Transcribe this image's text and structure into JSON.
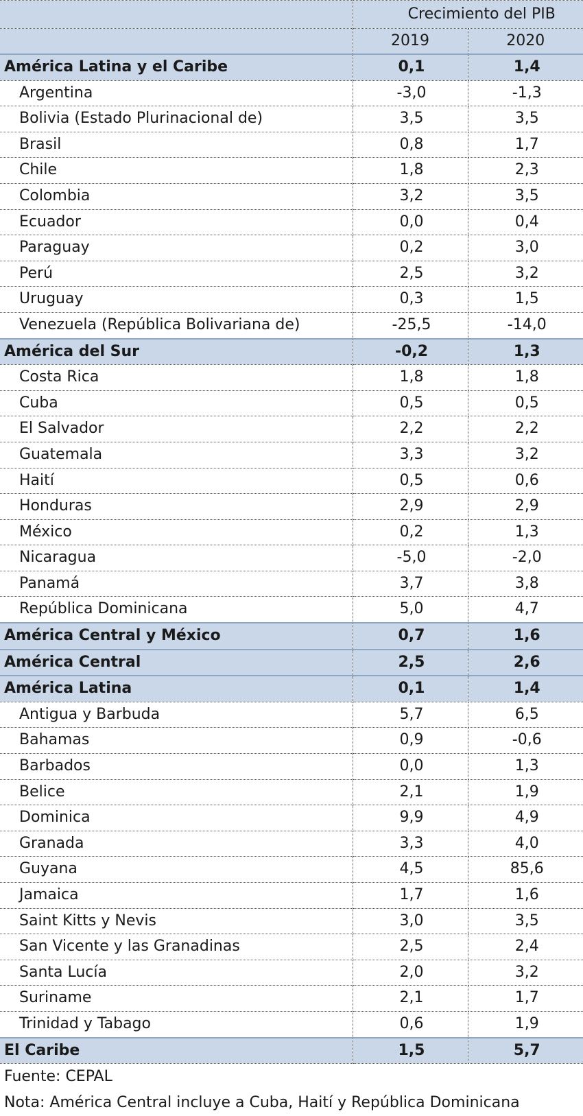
{
  "table": {
    "group_header": "Crecimiento del PIB",
    "years": [
      "2019",
      "2020"
    ],
    "rows": [
      {
        "name": "América Latina y el Caribe",
        "y2019": "0,1",
        "y2020": "1,4",
        "aggregate": true
      },
      {
        "name": "Argentina",
        "y2019": "-3,0",
        "y2020": "-1,3",
        "aggregate": false
      },
      {
        "name": "Bolivia (Estado Plurinacional de)",
        "y2019": "3,5",
        "y2020": "3,5",
        "aggregate": false
      },
      {
        "name": "Brasil",
        "y2019": "0,8",
        "y2020": "1,7",
        "aggregate": false
      },
      {
        "name": "Chile",
        "y2019": "1,8",
        "y2020": "2,3",
        "aggregate": false
      },
      {
        "name": "Colombia",
        "y2019": "3,2",
        "y2020": "3,5",
        "aggregate": false
      },
      {
        "name": "Ecuador",
        "y2019": "0,0",
        "y2020": "0,4",
        "aggregate": false
      },
      {
        "name": "Paraguay",
        "y2019": "0,2",
        "y2020": "3,0",
        "aggregate": false
      },
      {
        "name": "Perú",
        "y2019": "2,5",
        "y2020": "3,2",
        "aggregate": false
      },
      {
        "name": "Uruguay",
        "y2019": "0,3",
        "y2020": "1,5",
        "aggregate": false
      },
      {
        "name": "Venezuela (República Bolivariana de)",
        "y2019": "-25,5",
        "y2020": "-14,0",
        "aggregate": false
      },
      {
        "name": "América del Sur",
        "y2019": "-0,2",
        "y2020": "1,3",
        "aggregate": true
      },
      {
        "name": "Costa Rica",
        "y2019": "1,8",
        "y2020": "1,8",
        "aggregate": false
      },
      {
        "name": "Cuba",
        "y2019": "0,5",
        "y2020": "0,5",
        "aggregate": false
      },
      {
        "name": "El Salvador",
        "y2019": "2,2",
        "y2020": "2,2",
        "aggregate": false
      },
      {
        "name": "Guatemala",
        "y2019": "3,3",
        "y2020": "3,2",
        "aggregate": false
      },
      {
        "name": "Haití",
        "y2019": "0,5",
        "y2020": "0,6",
        "aggregate": false
      },
      {
        "name": "Honduras",
        "y2019": "2,9",
        "y2020": "2,9",
        "aggregate": false
      },
      {
        "name": "México",
        "y2019": "0,2",
        "y2020": "1,3",
        "aggregate": false
      },
      {
        "name": "Nicaragua",
        "y2019": "-5,0",
        "y2020": "-2,0",
        "aggregate": false
      },
      {
        "name": "Panamá",
        "y2019": "3,7",
        "y2020": "3,8",
        "aggregate": false
      },
      {
        "name": "República Dominicana",
        "y2019": "5,0",
        "y2020": "4,7",
        "aggregate": false
      },
      {
        "name": "América Central y México",
        "y2019": "0,7",
        "y2020": "1,6",
        "aggregate": true
      },
      {
        "name": "América Central",
        "y2019": "2,5",
        "y2020": "2,6",
        "aggregate": true
      },
      {
        "name": "América Latina",
        "y2019": "0,1",
        "y2020": "1,4",
        "aggregate": true
      },
      {
        "name": "Antigua y Barbuda",
        "y2019": "5,7",
        "y2020": "6,5",
        "aggregate": false
      },
      {
        "name": "Bahamas",
        "y2019": "0,9",
        "y2020": "-0,6",
        "aggregate": false
      },
      {
        "name": "Barbados",
        "y2019": "0,0",
        "y2020": "1,3",
        "aggregate": false
      },
      {
        "name": "Belice",
        "y2019": "2,1",
        "y2020": "1,9",
        "aggregate": false
      },
      {
        "name": "Dominica",
        "y2019": "9,9",
        "y2020": "4,9",
        "aggregate": false
      },
      {
        "name": "Granada",
        "y2019": "3,3",
        "y2020": "4,0",
        "aggregate": false
      },
      {
        "name": "Guyana",
        "y2019": "4,5",
        "y2020": "85,6",
        "aggregate": false
      },
      {
        "name": "Jamaica",
        "y2019": "1,7",
        "y2020": "1,6",
        "aggregate": false
      },
      {
        "name": "Saint Kitts y Nevis",
        "y2019": "3,0",
        "y2020": "3,5",
        "aggregate": false
      },
      {
        "name": "San Vicente y las Granadinas",
        "y2019": "2,5",
        "y2020": "2,4",
        "aggregate": false
      },
      {
        "name": "Santa Lucía",
        "y2019": "2,0",
        "y2020": "3,2",
        "aggregate": false
      },
      {
        "name": "Suriname",
        "y2019": "2,1",
        "y2020": "1,7",
        "aggregate": false
      },
      {
        "name": "Trinidad y Tabago",
        "y2019": "0,6",
        "y2020": "1,9",
        "aggregate": false
      },
      {
        "name": "El Caribe",
        "y2019": "1,5",
        "y2020": "5,7",
        "aggregate": true
      }
    ]
  },
  "source": "Fuente: CEPAL",
  "note": "Nota: América Central incluye a Cuba, Haití y República Dominicana",
  "colors": {
    "header_fill": "#c9d7e8",
    "border": "#555555"
  }
}
